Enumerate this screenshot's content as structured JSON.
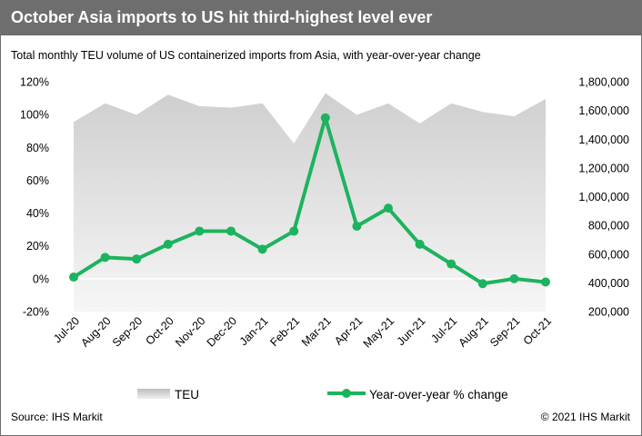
{
  "header": {
    "title": "October Asia imports to US hit third-highest level ever"
  },
  "chart_data": {
    "type": "line+area",
    "title": "October Asia imports to US hit third-highest level ever",
    "subtitle": "Total monthly TEU volume of US containerized imports from Asia, with year-over-year change",
    "categories": [
      "Jul-20",
      "Aug-20",
      "Sep-20",
      "Oct-20",
      "Nov-20",
      "Dec-20",
      "Jan-21",
      "Feb-21",
      "Mar-21",
      "Apr-21",
      "May-21",
      "Jun-21",
      "Jul-21",
      "Aug-21",
      "Sep-21",
      "Oct-21"
    ],
    "series": [
      {
        "name": "TEU",
        "type": "area",
        "axis": "right",
        "values": [
          1520000,
          1650000,
          1570000,
          1710000,
          1630000,
          1620000,
          1650000,
          1370000,
          1720000,
          1570000,
          1650000,
          1510000,
          1650000,
          1590000,
          1560000,
          1680000
        ]
      },
      {
        "name": "Year-over-year % change",
        "type": "line",
        "axis": "left",
        "values": [
          1,
          13,
          12,
          21,
          29,
          29,
          18,
          29,
          98,
          32,
          43,
          21,
          9,
          -3,
          0,
          -2
        ]
      }
    ],
    "y_left": {
      "min": -20,
      "max": 120,
      "step": 20,
      "ticks": [
        "-20%",
        "0%",
        "20%",
        "40%",
        "60%",
        "80%",
        "100%",
        "120%"
      ]
    },
    "y_right": {
      "min": 200000,
      "max": 1800000,
      "step": 200000,
      "ticks": [
        "200,000",
        "400,000",
        "600,000",
        "800,000",
        "1,000,000",
        "1,200,000",
        "1,400,000",
        "1,600,000",
        "1,800,000"
      ]
    },
    "legend": [
      {
        "label": "TEU",
        "style": "area"
      },
      {
        "label": "Year-over-year % change",
        "style": "line"
      }
    ],
    "legend_position": "bottom",
    "grid": false
  },
  "colors": {
    "line": "#1db35e",
    "area_top": "#cfcfcf",
    "area_bottom": "#f6f6f6",
    "header": "#6e6e6e"
  },
  "footer": {
    "source": "Source: IHS Markit",
    "copyright": "© 2021 IHS Markit"
  }
}
